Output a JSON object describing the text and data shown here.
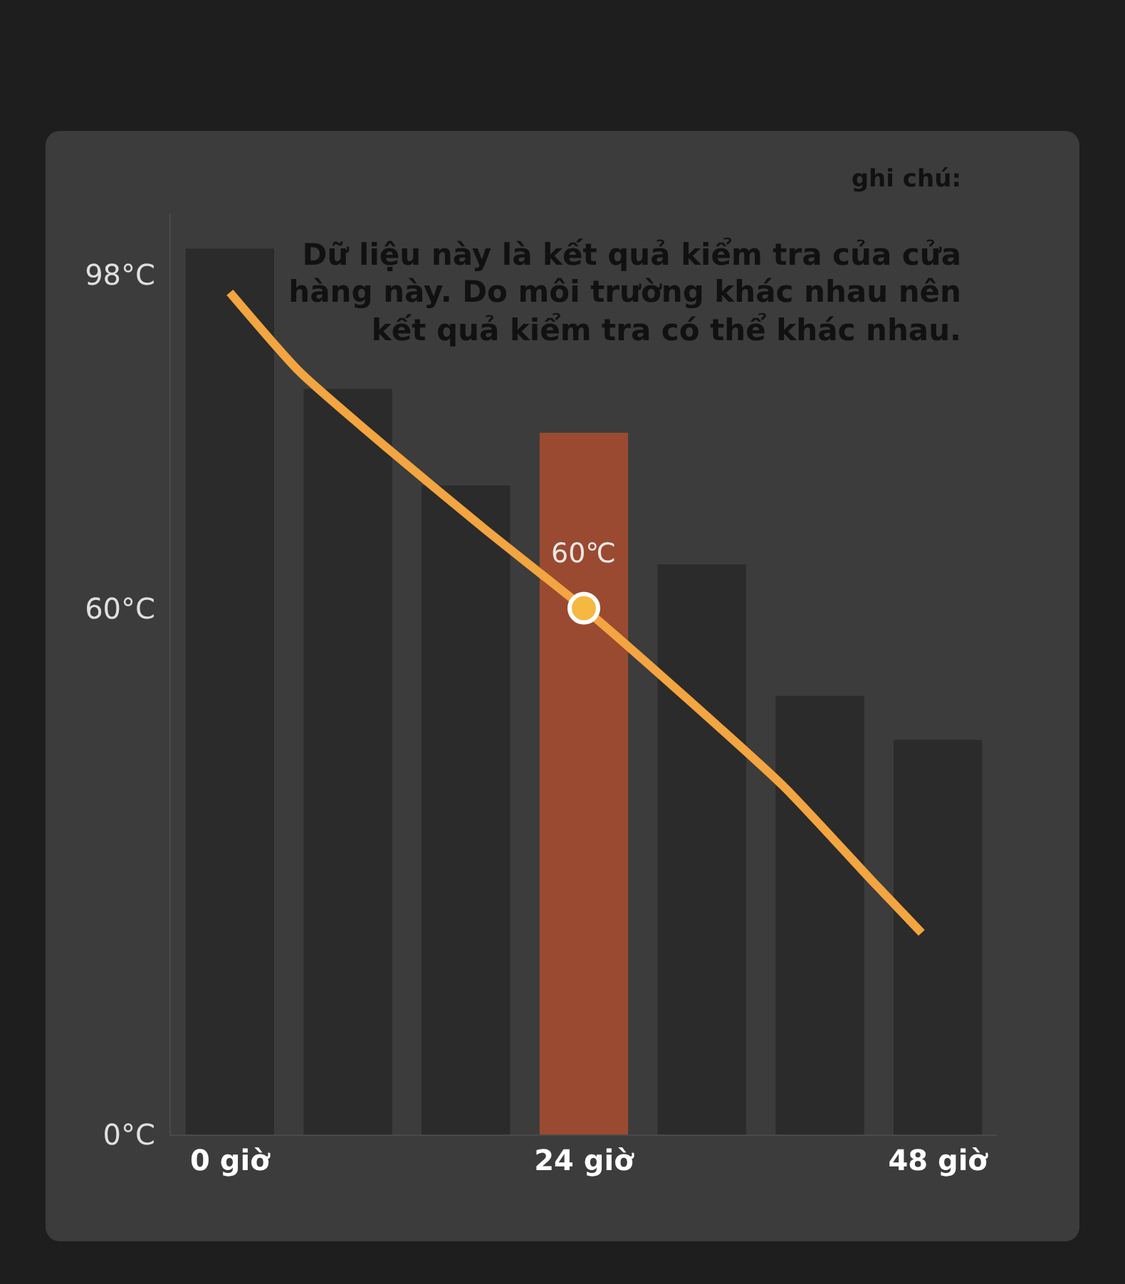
{
  "chart_data": {
    "type": "bar",
    "x": [
      0,
      8,
      16,
      24,
      32,
      40,
      48
    ],
    "series": [
      {
        "type": "bar",
        "colors": [
          "#2b2b2b",
          "#2b2b2b",
          "#2b2b2b",
          "#9a4a30",
          "#2b2b2b",
          "#2b2b2b",
          "#2b2b2b"
        ],
        "values": [
          101,
          85,
          74,
          80,
          65,
          50,
          45
        ]
      },
      {
        "type": "line",
        "color": "#f2a541",
        "marker": "none",
        "line_style": "solid",
        "x": [
          0,
          4.7,
          10.5,
          17.3,
          24,
          30.8,
          37.6,
          43.5,
          46.9
        ],
        "values": [
          96,
          87,
          78.5,
          69,
          60,
          50,
          39.6,
          29,
          23
        ]
      },
      {
        "type": "scatter",
        "color": "#f5b942",
        "marker": "circle",
        "x": [
          24
        ],
        "values": [
          60
        ]
      }
    ],
    "xlim": [
      -4,
      52
    ],
    "xticks": [
      {
        "value": 0,
        "label": "0 giờ"
      },
      {
        "value": 24,
        "label": "24 giờ"
      },
      {
        "value": 48,
        "label": "48 giờ"
      }
    ],
    "ylim": [
      0,
      105
    ],
    "yticks": [
      {
        "value": 0,
        "label": "0°C"
      },
      {
        "value": 60,
        "label": "60°C"
      },
      {
        "value": 98,
        "label": "98°C"
      }
    ],
    "grid": false,
    "annotations": [
      "ghi chú:",
      "Dữ liệu này là kết quả kiểm tra của cửa hàng này. Do môi trường khác nhau nên kết quả kiểm tra có thể khác nhau.",
      {
        "text": "60℃",
        "x": 24,
        "y": 60
      }
    ]
  }
}
